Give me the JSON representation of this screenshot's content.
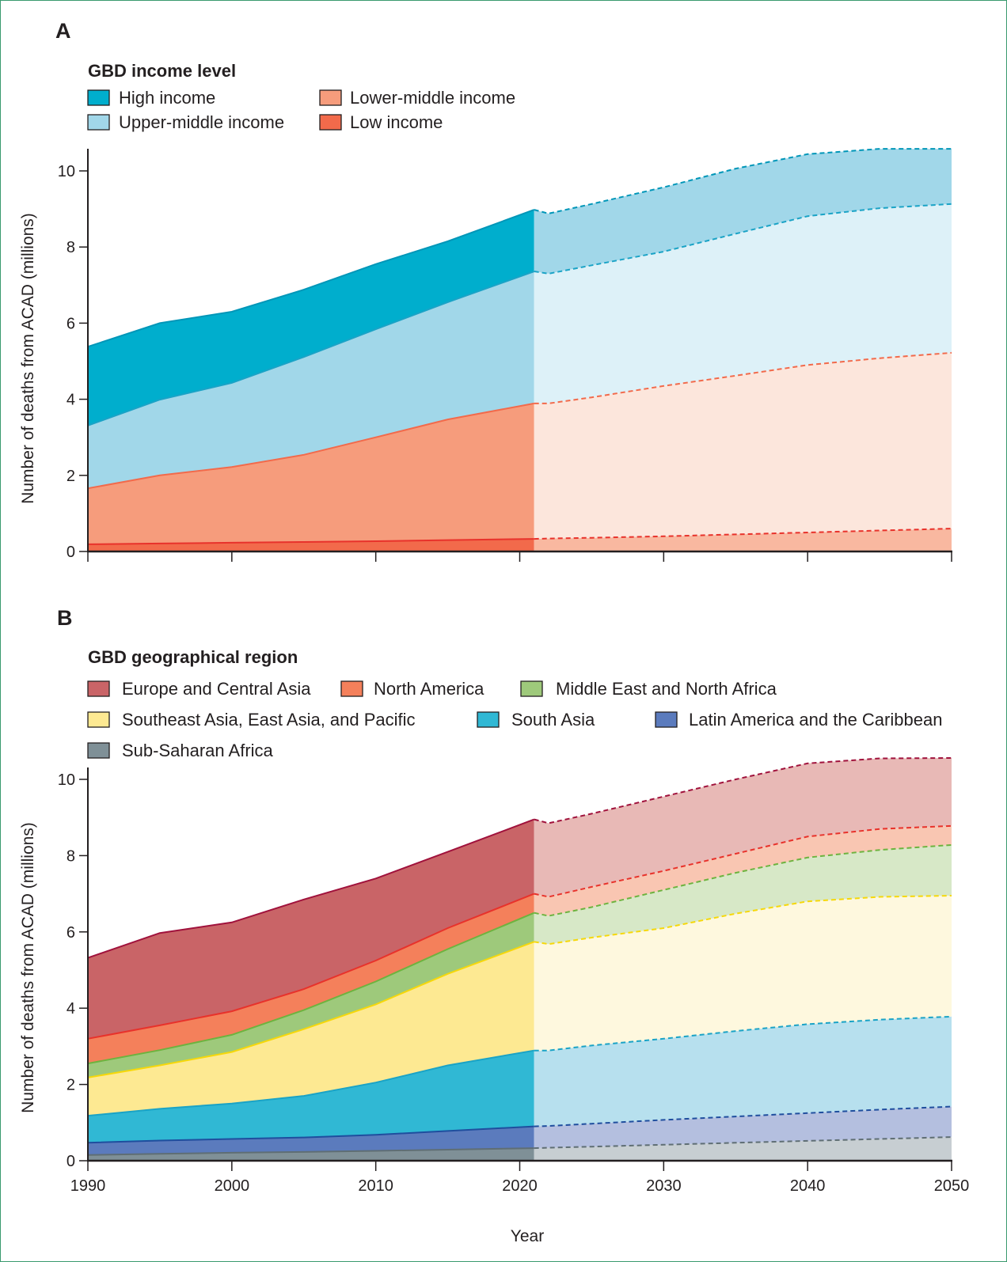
{
  "chart_data": [
    {
      "type": "area",
      "panel": "A",
      "legend_title": "GBD income level",
      "legend_placement": "top-left",
      "xlabel": "",
      "ylabel": "Number of deaths from ACAD (millions)",
      "xlim": [
        1990,
        2050
      ],
      "ylim": [
        0,
        10.5
      ],
      "yticks": [
        0,
        2,
        4,
        6,
        8,
        10
      ],
      "xticks": [
        1990,
        2000,
        2010,
        2020,
        2030,
        2040,
        2050
      ],
      "xtick_labels_shown": false,
      "forecast_start_year": 2021,
      "stacked": true,
      "note": "values are cumulative stack tops; solid = observed 1990-2021, dashed/pale = forecast 2022-2050",
      "x": [
        1990,
        1995,
        2000,
        2005,
        2010,
        2015,
        2021,
        2022,
        2025,
        2030,
        2035,
        2040,
        2045,
        2050
      ],
      "series": [
        {
          "name": "Low income",
          "color": "#f26a4b",
          "light": "#f9b8a0",
          "line": "#e8322b",
          "cumulative": [
            0.19,
            0.21,
            0.23,
            0.25,
            0.27,
            0.3,
            0.33,
            0.34,
            0.36,
            0.4,
            0.45,
            0.5,
            0.55,
            0.6
          ]
        },
        {
          "name": "Lower-middle income",
          "color": "#f69c7c",
          "light": "#fce6dc",
          "line": "#f26a4b",
          "cumulative": [
            1.66,
            2.0,
            2.22,
            2.54,
            3.0,
            3.47,
            3.89,
            3.89,
            4.05,
            4.35,
            4.62,
            4.9,
            5.08,
            5.22
          ]
        },
        {
          "name": "Upper-middle income",
          "color": "#a1d7e9",
          "light": "#ddf1f8",
          "line": "#1aa3c6",
          "cumulative": [
            3.31,
            3.99,
            4.43,
            5.11,
            5.84,
            6.55,
            7.36,
            7.3,
            7.52,
            7.88,
            8.35,
            8.81,
            9.02,
            9.13
          ]
        },
        {
          "name": "High income",
          "color": "#00aecd",
          "light": "#a1d7e9",
          "line": "#0096b8",
          "cumulative": [
            5.38,
            6.0,
            6.3,
            6.88,
            7.55,
            8.15,
            8.98,
            8.88,
            9.13,
            9.57,
            10.06,
            10.44,
            10.58,
            10.58
          ]
        }
      ]
    },
    {
      "type": "area",
      "panel": "B",
      "legend_title": "GBD geographical region",
      "legend_placement": "top-left",
      "xlabel": "Year",
      "ylabel": "Number of deaths from ACAD (millions)",
      "xlim": [
        1990,
        2050
      ],
      "ylim": [
        0,
        10.5
      ],
      "yticks": [
        0,
        2,
        4,
        6,
        8,
        10
      ],
      "xticks": [
        1990,
        2000,
        2010,
        2020,
        2030,
        2040,
        2050
      ],
      "xtick_labels_shown": true,
      "forecast_start_year": 2021,
      "stacked": true,
      "note": "values are cumulative stack tops; solid = observed 1990-2021, dashed/pale = forecast 2022-2050",
      "x": [
        1990,
        1995,
        2000,
        2005,
        2010,
        2015,
        2021,
        2022,
        2025,
        2030,
        2035,
        2040,
        2045,
        2050
      ],
      "series": [
        {
          "name": "Sub-Saharan Africa",
          "color": "#7f9097",
          "light": "#c7ced2",
          "line": "#5f6e74",
          "cumulative": [
            0.15,
            0.18,
            0.21,
            0.23,
            0.26,
            0.29,
            0.33,
            0.34,
            0.37,
            0.42,
            0.47,
            0.52,
            0.57,
            0.62
          ]
        },
        {
          "name": "Latin America and the Caribbean",
          "color": "#5b7bbd",
          "light": "#b4bfdf",
          "line": "#1f4e9e",
          "cumulative": [
            0.47,
            0.53,
            0.57,
            0.61,
            0.68,
            0.78,
            0.9,
            0.91,
            0.97,
            1.07,
            1.16,
            1.25,
            1.34,
            1.42
          ]
        },
        {
          "name": "South Asia",
          "color": "#30b8d4",
          "light": "#b7e0ee",
          "line": "#1aa3c6",
          "cumulative": [
            1.18,
            1.36,
            1.5,
            1.7,
            2.05,
            2.5,
            2.89,
            2.89,
            3.02,
            3.2,
            3.4,
            3.58,
            3.7,
            3.78
          ]
        },
        {
          "name": "Southeast Asia, East Asia, and Pacific",
          "color": "#fde992",
          "light": "#fef8de",
          "line": "#f6d80a",
          "cumulative": [
            2.18,
            2.5,
            2.85,
            3.45,
            4.1,
            4.9,
            5.74,
            5.68,
            5.85,
            6.1,
            6.48,
            6.8,
            6.92,
            6.95
          ]
        },
        {
          "name": "Middle East and North Africa",
          "color": "#9ec97b",
          "light": "#d7e8c7",
          "line": "#6db33f",
          "cumulative": [
            2.55,
            2.9,
            3.3,
            3.95,
            4.7,
            5.55,
            6.5,
            6.42,
            6.65,
            7.1,
            7.55,
            7.95,
            8.15,
            8.28
          ]
        },
        {
          "name": "North America",
          "color": "#f4805b",
          "light": "#f9c6b2",
          "line": "#e8322b",
          "cumulative": [
            3.2,
            3.55,
            3.92,
            4.5,
            5.25,
            6.1,
            7.0,
            6.92,
            7.18,
            7.6,
            8.05,
            8.5,
            8.7,
            8.78
          ]
        },
        {
          "name": "Europe and Central Asia",
          "color": "#c96467",
          "light": "#e8b9b6",
          "line": "#a0123c",
          "cumulative": [
            5.32,
            5.97,
            6.25,
            6.85,
            7.4,
            8.1,
            8.95,
            8.85,
            9.1,
            9.55,
            10.0,
            10.42,
            10.55,
            10.56
          ]
        }
      ]
    }
  ],
  "panels": {
    "a": {
      "letter": "A",
      "legend_title": "GBD income level",
      "legend": [
        "High income",
        "Lower-middle income",
        "Upper-middle income",
        "Low income"
      ],
      "ylabel": "Number of deaths from ACAD (millions)",
      "yticks": [
        "0",
        "2",
        "4",
        "6",
        "8",
        "10"
      ]
    },
    "b": {
      "letter": "B",
      "legend_title": "GBD geographical region",
      "legend": [
        "Europe and Central Asia",
        "North America",
        "Middle East and North Africa",
        "Southeast Asia, East Asia, and Pacific",
        "South Asia",
        "Latin America and the Caribbean",
        "Sub-Saharan Africa"
      ],
      "ylabel": "Number of deaths from ACAD (millions)",
      "yticks": [
        "0",
        "2",
        "4",
        "6",
        "8",
        "10"
      ],
      "xticks": [
        "1990",
        "2000",
        "2010",
        "2020",
        "2030",
        "2040",
        "2050"
      ],
      "xlabel": "Year"
    }
  },
  "legend_colors": {
    "a": [
      "#00aecd",
      "#f69c7c",
      "#a1d7e9",
      "#f26a4b"
    ],
    "b": [
      "#c96467",
      "#f4805b",
      "#9ec97b",
      "#fde992",
      "#30b8d4",
      "#5b7bbd",
      "#7f9097"
    ]
  }
}
